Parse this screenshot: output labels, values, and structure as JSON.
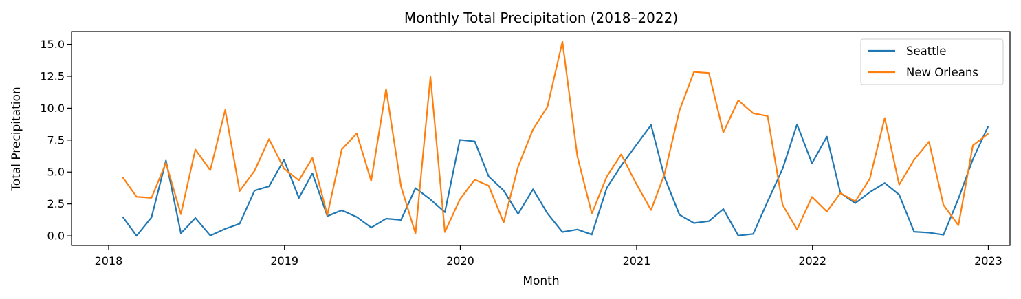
{
  "chart_data": {
    "type": "line",
    "title": "Monthly Total Precipitation (2018–2022)",
    "xlabel": "Month",
    "ylabel": "Total Precipitation",
    "x_ticks": [
      "2018",
      "2019",
      "2020",
      "2021",
      "2022",
      "2023"
    ],
    "y_ticks": [
      "0.0",
      "2.5",
      "5.0",
      "7.5",
      "10.0",
      "12.5",
      "15.0"
    ],
    "ylim": [
      -0.75,
      16
    ],
    "xlim": [
      "2017-10-16",
      "2023-02-15"
    ],
    "grid": false,
    "legend_position": "top-right",
    "dates": [
      "2018-01-31",
      "2018-02-28",
      "2018-03-31",
      "2018-04-30",
      "2018-05-31",
      "2018-06-30",
      "2018-07-31",
      "2018-08-31",
      "2018-09-30",
      "2018-10-31",
      "2018-11-30",
      "2018-12-31",
      "2019-01-31",
      "2019-02-28",
      "2019-03-31",
      "2019-04-30",
      "2019-05-31",
      "2019-06-30",
      "2019-07-31",
      "2019-08-31",
      "2019-09-30",
      "2019-10-31",
      "2019-11-30",
      "2019-12-31",
      "2020-01-31",
      "2020-02-29",
      "2020-03-31",
      "2020-04-30",
      "2020-05-31",
      "2020-06-30",
      "2020-07-31",
      "2020-08-31",
      "2020-09-30",
      "2020-10-31",
      "2020-11-30",
      "2020-12-31",
      "2021-01-31",
      "2021-02-28",
      "2021-03-31",
      "2021-04-30",
      "2021-05-31",
      "2021-06-30",
      "2021-07-31",
      "2021-08-31",
      "2021-09-30",
      "2021-10-31",
      "2021-11-30",
      "2021-12-31",
      "2022-01-31",
      "2022-02-28",
      "2022-03-31",
      "2022-04-30",
      "2022-05-31",
      "2022-06-30",
      "2022-07-31",
      "2022-08-31",
      "2022-09-30",
      "2022-10-31",
      "2022-11-30",
      "2022-12-31"
    ],
    "series": [
      {
        "name": "Seattle",
        "color": "#1f77b4",
        "values": [
          1.45,
          0.0,
          1.45,
          5.9,
          0.2,
          1.4,
          0.02,
          0.55,
          0.95,
          3.55,
          3.88,
          5.95,
          2.97,
          4.9,
          1.55,
          2.0,
          1.48,
          0.65,
          1.35,
          1.25,
          3.74,
          2.85,
          1.85,
          7.52,
          7.4,
          4.65,
          3.55,
          1.72,
          3.65,
          1.75,
          0.3,
          0.5,
          0.1,
          3.75,
          5.5,
          7.1,
          8.68,
          4.58,
          1.65,
          1.0,
          1.15,
          2.1,
          0.02,
          0.15,
          2.7,
          5.25,
          8.73,
          5.68,
          7.77,
          3.35,
          2.56,
          3.42,
          4.14,
          3.22,
          0.32,
          0.25,
          0.08,
          2.91,
          6.0,
          8.52
        ]
      },
      {
        "name": "New Orleans",
        "color": "#ff7f0e",
        "values": [
          4.55,
          3.06,
          2.98,
          5.72,
          1.7,
          6.76,
          5.14,
          9.86,
          3.51,
          5.1,
          7.58,
          5.27,
          4.35,
          6.1,
          1.63,
          6.77,
          8.02,
          4.3,
          11.5,
          3.87,
          0.18,
          12.45,
          0.3,
          2.85,
          4.4,
          3.92,
          1.05,
          5.42,
          8.35,
          10.12,
          15.22,
          6.23,
          1.74,
          4.64,
          6.38,
          4.1,
          2.02,
          4.85,
          9.83,
          12.84,
          12.76,
          8.1,
          10.61,
          9.6,
          9.38,
          2.43,
          0.5,
          3.05,
          1.9,
          3.35,
          2.7,
          4.47,
          9.23,
          4.0,
          5.96,
          7.37,
          2.41,
          0.83,
          7.08,
          7.98
        ]
      }
    ]
  }
}
